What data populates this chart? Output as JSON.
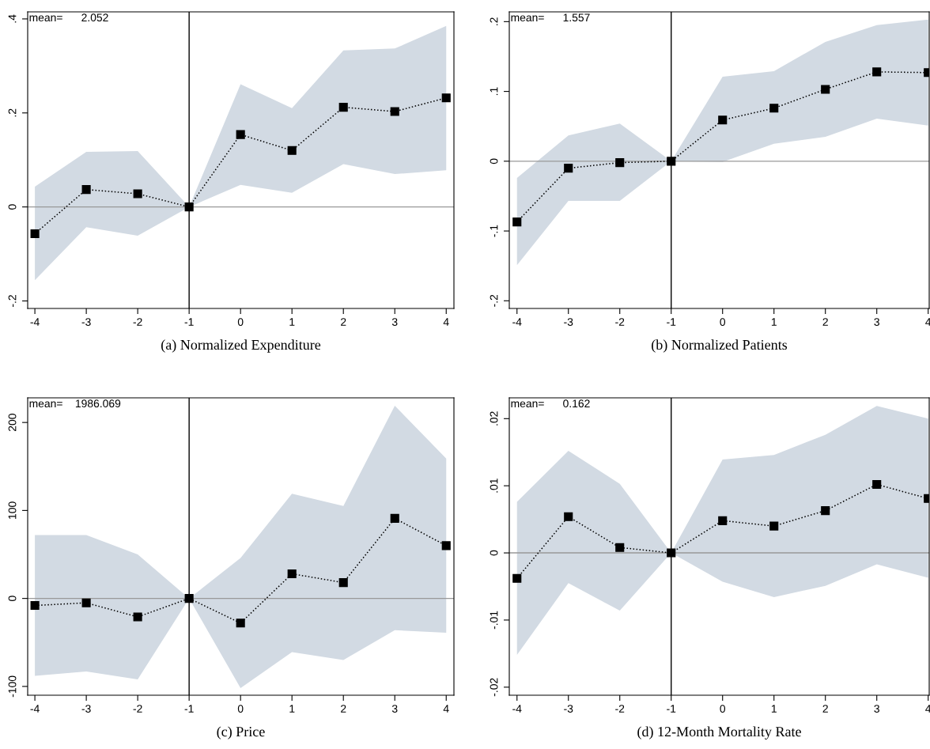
{
  "chart_data": [
    {
      "type": "line",
      "title": "(a) Normalized Expenditure",
      "x": [
        -4,
        -3,
        -2,
        -1,
        0,
        1,
        2,
        3,
        4
      ],
      "xlim": [
        -4.14,
        4.15
      ],
      "xticks": [
        -4,
        -3,
        -2,
        -1,
        0,
        1,
        2,
        3,
        4
      ],
      "ylim": [
        -0.216,
        0.415
      ],
      "yticks": [
        {
          "value": -0.2,
          "label": "-.2"
        },
        {
          "value": 0,
          "label": "0"
        },
        {
          "value": 0.2,
          "label": ".2"
        },
        {
          "value": 0.4,
          "label": ".4"
        }
      ],
      "grid": false,
      "legend": false,
      "marker": "square",
      "line_style": "dotted",
      "series": [
        {
          "color": "#000000",
          "values": [
            -0.057,
            0.037,
            0.028,
            0,
            0.154,
            0.12,
            0.212,
            0.203,
            0.232
          ],
          "lower": [
            -0.156,
            -0.043,
            -0.061,
            0,
            0.047,
            0.03,
            0.091,
            0.07,
            0.078
          ],
          "upper": [
            0.043,
            0.117,
            0.119,
            0,
            0.261,
            0.21,
            0.333,
            0.337,
            0.385
          ]
        }
      ],
      "ref_lines": [
        {
          "axis": "x",
          "value": -1,
          "color": "#000000"
        },
        {
          "axis": "y",
          "value": 0,
          "color": "#999999"
        }
      ],
      "annotations": [
        "mean=      2.052"
      ]
    },
    {
      "type": "line",
      "title": "(b) Normalized Patients",
      "x": [
        -4,
        -3,
        -2,
        -1,
        0,
        1,
        2,
        3,
        4
      ],
      "xlim": [
        -4.15,
        4.02
      ],
      "xticks": [
        -4,
        -3,
        -2,
        -1,
        0,
        1,
        2,
        3,
        4
      ],
      "ylim": [
        -0.211,
        0.214
      ],
      "yticks": [
        {
          "value": -0.2,
          "label": "-.2"
        },
        {
          "value": -0.1,
          "label": "-.1"
        },
        {
          "value": 0,
          "label": "0"
        },
        {
          "value": 0.1,
          "label": ".1"
        },
        {
          "value": 0.2,
          "label": ".2"
        }
      ],
      "grid": false,
      "legend": false,
      "marker": "square",
      "line_style": "dotted",
      "series": [
        {
          "color": "#000000",
          "values": [
            -0.087,
            -0.01,
            -0.002,
            0,
            0.059,
            0.076,
            0.103,
            0.128,
            0.127
          ],
          "lower": [
            -0.149,
            -0.057,
            -0.057,
            0,
            -0.001,
            0.025,
            0.035,
            0.061,
            0.051
          ],
          "upper": [
            -0.024,
            0.037,
            0.054,
            0,
            0.121,
            0.129,
            0.171,
            0.195,
            0.203
          ]
        }
      ],
      "ref_lines": [
        {
          "axis": "x",
          "value": -1,
          "color": "#000000"
        },
        {
          "axis": "y",
          "value": 0,
          "color": "#999999"
        }
      ],
      "annotations": [
        "mean=      1.557"
      ]
    },
    {
      "type": "line",
      "title": "(c) Price",
      "x": [
        -4,
        -3,
        -2,
        -1,
        0,
        1,
        2,
        3,
        4
      ],
      "xlim": [
        -4.14,
        4.15
      ],
      "xticks": [
        -4,
        -3,
        -2,
        -1,
        0,
        1,
        2,
        3,
        4
      ],
      "ylim": [
        -110,
        228
      ],
      "yticks": [
        -100,
        0,
        100,
        200
      ],
      "grid": false,
      "legend": false,
      "marker": "square",
      "line_style": "dotted",
      "series": [
        {
          "color": "#000000",
          "values": [
            -8,
            -5,
            -21,
            0,
            -28,
            28,
            18,
            91,
            60
          ],
          "lower": [
            -88,
            -83,
            -92,
            0,
            -102,
            -61,
            -70,
            -36,
            -39
          ],
          "upper": [
            72,
            72,
            50,
            0,
            46,
            119,
            105,
            219,
            159
          ]
        }
      ],
      "ref_lines": [
        {
          "axis": "x",
          "value": -1,
          "color": "#000000"
        },
        {
          "axis": "y",
          "value": 0,
          "color": "#999999"
        }
      ],
      "annotations": [
        "mean=    1986.069"
      ]
    },
    {
      "type": "line",
      "title": "(d) 12-Month Mortality Rate",
      "x": [
        -4,
        -3,
        -2,
        -1,
        0,
        1,
        2,
        3,
        4
      ],
      "xlim": [
        -4.15,
        4.02
      ],
      "xticks": [
        -4,
        -3,
        -2,
        -1,
        0,
        1,
        2,
        3,
        4
      ],
      "ylim": [
        -0.0212,
        0.0231
      ],
      "yticks": [
        {
          "value": -0.02,
          "label": "-.02"
        },
        {
          "value": -0.01,
          "label": "-.01"
        },
        {
          "value": 0,
          "label": "0"
        },
        {
          "value": 0.01,
          "label": ".01"
        },
        {
          "value": 0.02,
          "label": ".02"
        }
      ],
      "grid": false,
      "legend": false,
      "marker": "square",
      "line_style": "dotted",
      "series": [
        {
          "color": "#000000",
          "values": [
            -0.0038,
            0.0054,
            0.0008,
            0,
            0.0048,
            0.004,
            0.0063,
            0.0102,
            0.0081
          ],
          "lower": [
            -0.0152,
            -0.0045,
            -0.0086,
            0,
            -0.0043,
            -0.0066,
            -0.0049,
            -0.0017,
            -0.0037
          ],
          "upper": [
            0.0076,
            0.0152,
            0.0103,
            0,
            0.0139,
            0.0146,
            0.0176,
            0.0219,
            0.02
          ]
        }
      ],
      "ref_lines": [
        {
          "axis": "x",
          "value": -1,
          "color": "#000000"
        },
        {
          "axis": "y",
          "value": 0,
          "color": "#999999"
        }
      ],
      "annotations": [
        "mean=      0.162"
      ]
    }
  ]
}
